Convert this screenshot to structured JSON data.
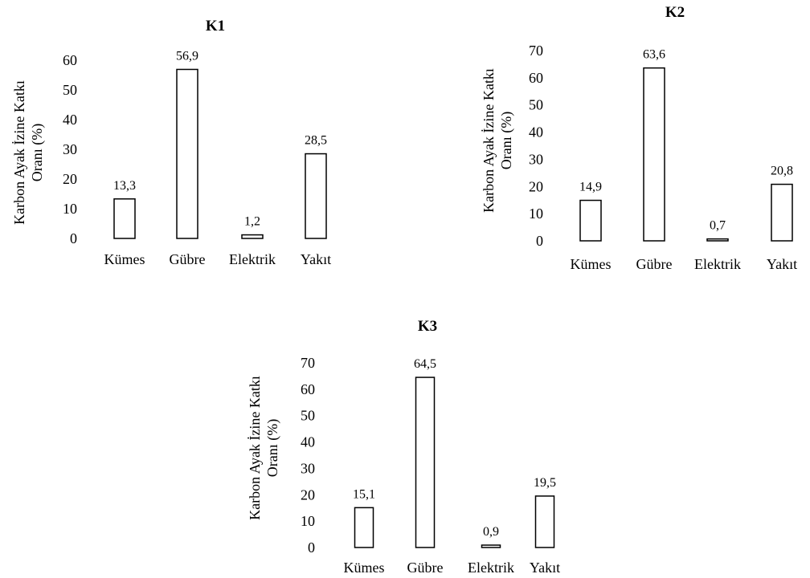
{
  "chart_data": [
    {
      "type": "bar",
      "title": "K1",
      "ylabel": [
        "Karbon Ayak İzine Katkı",
        "Oranı (%)"
      ],
      "categories": [
        "Kümes",
        "Gübre",
        "Elektrik",
        "Yakıt"
      ],
      "values": [
        13.3,
        56.9,
        1.2,
        28.5
      ],
      "value_labels": [
        "13,3",
        "56,9",
        "1,2",
        "28,5"
      ],
      "yticks": [
        "0",
        "10",
        "20",
        "30",
        "40",
        "50",
        "60"
      ],
      "ylim": [
        0,
        60
      ],
      "grid": false,
      "legend": "none"
    },
    {
      "type": "bar",
      "title": "K2",
      "ylabel": [
        "Karbon Ayak İzine Katkı",
        "Oranı (%)"
      ],
      "categories": [
        "Kümes",
        "Gübre",
        "Elektrik",
        "Yakıt"
      ],
      "values": [
        14.9,
        63.6,
        0.7,
        20.8
      ],
      "value_labels": [
        "14,9",
        "63,6",
        "0,7",
        "20,8"
      ],
      "yticks": [
        "0",
        "10",
        "20",
        "30",
        "40",
        "50",
        "60",
        "70"
      ],
      "ylim": [
        0,
        70
      ],
      "grid": false,
      "legend": "none"
    },
    {
      "type": "bar",
      "title": "K3",
      "ylabel": [
        "Karbon Ayak İzine Katkı",
        "Oranı (%)"
      ],
      "categories": [
        "Kümes",
        "Gübre",
        "Elektrik",
        "Yakıt"
      ],
      "values": [
        15.1,
        64.5,
        0.9,
        19.5
      ],
      "value_labels": [
        "15,1",
        "64,5",
        "0,9",
        "19,5"
      ],
      "yticks": [
        "0",
        "10",
        "20",
        "30",
        "40",
        "50",
        "60",
        "70"
      ],
      "ylim": [
        0,
        70
      ],
      "grid": false,
      "legend": "none"
    }
  ]
}
